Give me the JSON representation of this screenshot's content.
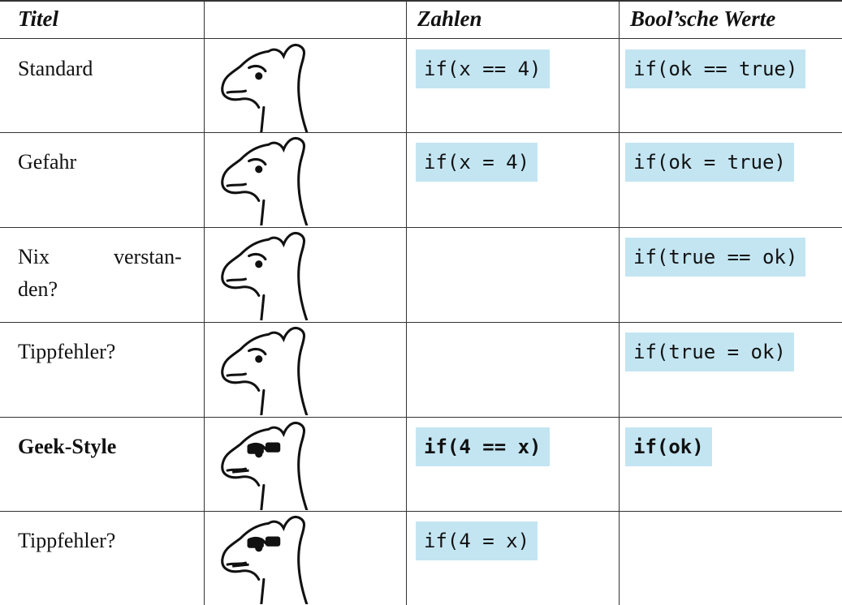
{
  "header": {
    "title": "Titel",
    "numbers": "Zahlen",
    "booleans": "Bool’sche Werte"
  },
  "rows": [
    {
      "label": "Standard",
      "numbers": "if(x == 4)",
      "booleans": "if(ok == true)"
    },
    {
      "label": "Gefahr",
      "numbers": "if(x = 4)",
      "booleans": "if(ok = true)"
    },
    {
      "label_lines": [
        "Nix",
        "verstan-",
        "den?"
      ],
      "booleans": "if(true == ok)"
    },
    {
      "label": "Tippfehler?",
      "booleans": "if(true = ok)"
    },
    {
      "label": "Geek-Style",
      "numbers": "if(4 == x)",
      "booleans": "if(ok)"
    },
    {
      "label": "Tippfehler?",
      "numbers": "if(4 = x)"
    }
  ]
}
